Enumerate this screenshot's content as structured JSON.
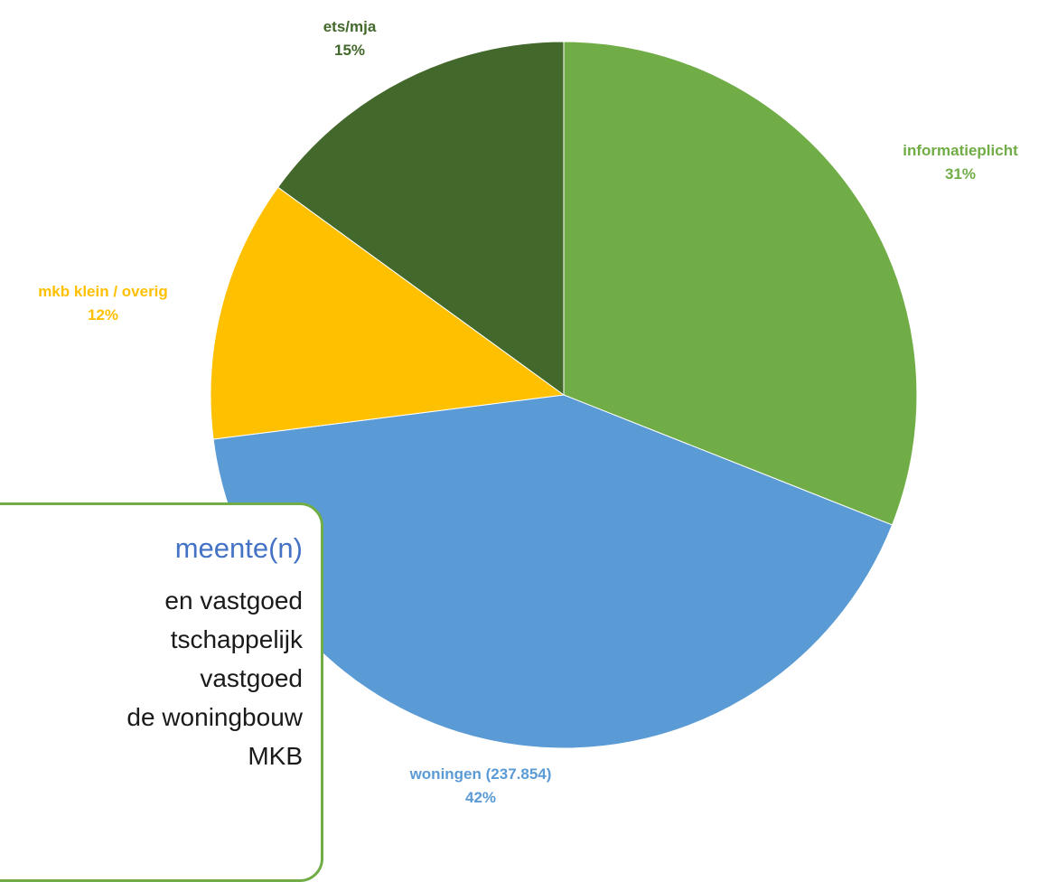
{
  "chart_data": {
    "type": "pie",
    "title": "",
    "slices": [
      {
        "label": "informatieplicht",
        "percent_label": "31%",
        "value": 31,
        "color": "#70ad47"
      },
      {
        "label": "woningen (237.854)",
        "percent_label": "42%",
        "value": 42,
        "color": "#5b9bd5"
      },
      {
        "label": "mkb klein / overig",
        "percent_label": "12%",
        "value": 12,
        "color": "#ffc000"
      },
      {
        "label": "ets/mja",
        "percent_label": "15%",
        "value": 15,
        "color": "#43682b"
      }
    ],
    "start_angle_deg": 0,
    "direction": "clockwise"
  },
  "callout": {
    "title": "meente(n)",
    "lines": [
      "en vastgoed",
      "tschappelijk",
      "vastgoed",
      "de woningbouw",
      "MKB"
    ],
    "title_color": "#4472c4",
    "border_color": "#70ad47"
  }
}
